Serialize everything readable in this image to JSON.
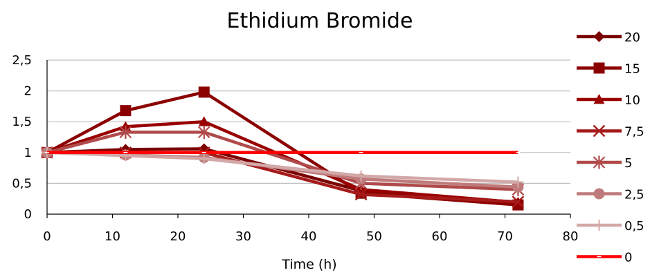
{
  "chart_data": {
    "type": "line",
    "title": "Ethidium Bromide",
    "xlabel": "Time (h)",
    "ylabel": "",
    "xlim": [
      0,
      80
    ],
    "ylim": [
      0,
      2.5
    ],
    "xticks": [
      "0",
      "10",
      "20",
      "30",
      "40",
      "50",
      "60",
      "70",
      "80"
    ],
    "yticks": [
      "0",
      "0,5",
      "1",
      "1,5",
      "2",
      "2,5"
    ],
    "grid": "horizontal",
    "legend": "right",
    "x": [
      0,
      12,
      24,
      48,
      72
    ],
    "series": [
      {
        "name": "20",
        "values": [
          1,
          1.05,
          1.06,
          0.38,
          0.18
        ],
        "color": "#7a0000",
        "marker": "diamond"
      },
      {
        "name": "15",
        "values": [
          1,
          1.68,
          1.98,
          0.34,
          0.15
        ],
        "color": "#8b0000",
        "marker": "square"
      },
      {
        "name": "10",
        "values": [
          1,
          1.42,
          1.5,
          0.4,
          0.19
        ],
        "color": "#990000",
        "marker": "triangle"
      },
      {
        "name": "7,5",
        "values": [
          1,
          1.0,
          1.0,
          0.32,
          0.2
        ],
        "color": "#a61a1a",
        "marker": "x"
      },
      {
        "name": "5",
        "values": [
          1,
          1.33,
          1.33,
          0.5,
          0.4
        ],
        "color": "#b04a4a",
        "marker": "star"
      },
      {
        "name": "2,5",
        "values": [
          1,
          0.96,
          0.92,
          0.57,
          0.44
        ],
        "color": "#bf7b7b",
        "marker": "circle"
      },
      {
        "name": "0,5",
        "values": [
          1,
          0.95,
          0.9,
          0.62,
          0.52
        ],
        "color": "#d3a8a8",
        "marker": "plus"
      },
      {
        "name": "0",
        "values": [
          1,
          1.0,
          1.0,
          1.0,
          1.0
        ],
        "color": "#ff0000",
        "marker": "dash"
      }
    ]
  }
}
